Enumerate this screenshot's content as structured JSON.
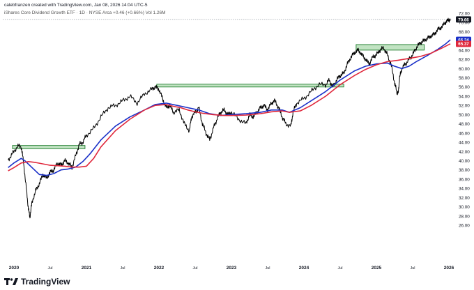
{
  "header": {
    "credit": "calebfranzen created with TradingView.com, Jan 08, 2026 14:04 UTC-5",
    "legend": "iShares Core Dividend Growth ETF · 1D · NYSE Arca  +0.46 (+0.66%)  Vol 1.26M"
  },
  "brand": {
    "name": "TradingView",
    "icon": "tradingview-logo-icon"
  },
  "chart_data": {
    "type": "line",
    "title": "iShares Core Dividend Growth ETF · 1D · NYSE Arca",
    "xlabel": "",
    "ylabel": "",
    "ylim": [
      26,
      72
    ],
    "xlim": [
      2019.92,
      2026.05
    ],
    "y_ticks": [
      "26.00",
      "28.00",
      "30.00",
      "32.00",
      "34.00",
      "36.00",
      "38.00",
      "40.00",
      "42.00",
      "44.00",
      "46.00",
      "48.00",
      "50.00",
      "52.00",
      "54.00",
      "56.00",
      "58.00",
      "60.00",
      "62.00",
      "64.00",
      "66.00",
      "68.00",
      "70.00",
      "72.00"
    ],
    "x_ticks": [
      {
        "label": "2020",
        "x": 2020.0
      },
      {
        "label": "Jul",
        "x": 2020.5
      },
      {
        "label": "2021",
        "x": 2021.0
      },
      {
        "label": "Jul",
        "x": 2021.5
      },
      {
        "label": "2022",
        "x": 2022.0
      },
      {
        "label": "Jul",
        "x": 2022.5
      },
      {
        "label": "2023",
        "x": 2023.0
      },
      {
        "label": "Jul",
        "x": 2023.5
      },
      {
        "label": "2024",
        "x": 2024.0
      },
      {
        "label": "Jul",
        "x": 2024.5
      },
      {
        "label": "2025",
        "x": 2025.0
      },
      {
        "label": "Jul",
        "x": 2025.5
      },
      {
        "label": "2026",
        "x": 2026.0
      }
    ],
    "price_labels": [
      {
        "value": 70.66,
        "text": "70.66",
        "color": "#131722"
      },
      {
        "value": 66.24,
        "text": "66.24",
        "color": "#1a30c8"
      },
      {
        "value": 65.37,
        "text": "65.37",
        "color": "#e0283c"
      }
    ],
    "last_price_line": 70.66,
    "series": [
      {
        "type": "price",
        "color": "#000000",
        "x": [
          2019.92,
          2019.98,
          2020.05,
          2020.1,
          2020.13,
          2020.17,
          2020.2,
          2020.22,
          2020.25,
          2020.3,
          2020.35,
          2020.4,
          2020.45,
          2020.5,
          2020.55,
          2020.6,
          2020.65,
          2020.7,
          2020.75,
          2020.8,
          2020.85,
          2020.9,
          2020.95,
          2021.0,
          2021.1,
          2021.2,
          2021.3,
          2021.4,
          2021.5,
          2021.6,
          2021.7,
          2021.8,
          2021.9,
          2021.95,
          2022.0,
          2022.05,
          2022.1,
          2022.15,
          2022.2,
          2022.28,
          2022.35,
          2022.42,
          2022.45,
          2022.5,
          2022.55,
          2022.6,
          2022.65,
          2022.7,
          2022.75,
          2022.8,
          2022.85,
          2022.9,
          2022.95,
          2023.0,
          2023.1,
          2023.2,
          2023.25,
          2023.3,
          2023.35,
          2023.4,
          2023.45,
          2023.5,
          2023.55,
          2023.6,
          2023.65,
          2023.7,
          2023.75,
          2023.82,
          2023.85,
          2023.9,
          2024.0,
          2024.1,
          2024.2,
          2024.3,
          2024.35,
          2024.4,
          2024.45,
          2024.5,
          2024.55,
          2024.6,
          2024.65,
          2024.7,
          2024.75,
          2024.8,
          2024.85,
          2024.9,
          2024.95,
          2025.0,
          2025.05,
          2025.1,
          2025.15,
          2025.2,
          2025.25,
          2025.28,
          2025.3,
          2025.32,
          2025.35,
          2025.4,
          2025.45,
          2025.5,
          2025.55,
          2025.6,
          2025.65,
          2025.7,
          2025.75,
          2025.8,
          2025.85,
          2025.9,
          2025.95,
          2025.99,
          2026.02
        ],
        "values": [
          40.2,
          41.5,
          43.2,
          43.0,
          40.0,
          34.0,
          29.5,
          27.8,
          31.0,
          33.5,
          35.0,
          37.0,
          36.2,
          37.5,
          38.0,
          39.5,
          39.0,
          40.0,
          39.5,
          38.5,
          41.0,
          43.5,
          44.0,
          45.5,
          47.0,
          49.5,
          51.5,
          52.0,
          53.0,
          54.0,
          52.5,
          54.5,
          55.5,
          56.0,
          55.5,
          53.5,
          51.5,
          52.0,
          50.5,
          51.0,
          48.0,
          46.5,
          49.5,
          50.5,
          51.5,
          48.0,
          46.0,
          44.5,
          47.0,
          49.0,
          50.5,
          51.0,
          50.0,
          50.5,
          49.0,
          48.0,
          50.0,
          49.5,
          50.5,
          51.5,
          52.0,
          51.0,
          52.5,
          53.0,
          51.5,
          49.5,
          48.0,
          47.5,
          50.5,
          52.5,
          53.5,
          55.0,
          56.5,
          56.5,
          57.5,
          56.0,
          57.5,
          58.5,
          59.0,
          61.0,
          62.5,
          63.5,
          64.0,
          63.0,
          62.0,
          61.0,
          62.5,
          63.0,
          64.0,
          64.5,
          63.0,
          61.0,
          57.0,
          55.0,
          54.5,
          58.0,
          60.0,
          61.0,
          62.0,
          63.0,
          64.5,
          65.5,
          66.0,
          66.5,
          67.0,
          67.5,
          68.5,
          69.0,
          70.0,
          70.5,
          70.66
        ]
      },
      {
        "type": "ma-blue",
        "color": "#1a30c8",
        "x": [
          2019.92,
          2020.0,
          2020.1,
          2020.15,
          2020.25,
          2020.35,
          2020.45,
          2020.55,
          2020.65,
          2020.75,
          2020.85,
          2020.95,
          2021.05,
          2021.2,
          2021.4,
          2021.6,
          2021.8,
          2021.95,
          2022.1,
          2022.25,
          2022.4,
          2022.55,
          2022.7,
          2022.85,
          2023.0,
          2023.2,
          2023.4,
          2023.55,
          2023.7,
          2023.8,
          2023.95,
          2024.1,
          2024.3,
          2024.5,
          2024.7,
          2024.85,
          2025.0,
          2025.15,
          2025.25,
          2025.35,
          2025.45,
          2025.55,
          2025.7,
          2025.85,
          2025.95,
          2026.02
        ],
        "values": [
          38.5,
          39.5,
          40.5,
          40.0,
          38.5,
          37.0,
          36.8,
          37.2,
          38.0,
          38.2,
          38.6,
          39.8,
          41.5,
          44.5,
          47.5,
          49.5,
          51.0,
          52.2,
          52.5,
          52.0,
          51.5,
          51.0,
          50.2,
          49.8,
          50.0,
          50.2,
          50.5,
          51.0,
          51.0,
          50.5,
          51.5,
          53.0,
          55.0,
          57.5,
          59.5,
          60.5,
          61.0,
          61.2,
          60.5,
          60.0,
          60.5,
          61.5,
          62.8,
          64.2,
          65.3,
          66.24
        ]
      },
      {
        "type": "ma-red",
        "color": "#e0283c",
        "x": [
          2019.92,
          2020.0,
          2020.1,
          2020.2,
          2020.3,
          2020.4,
          2020.5,
          2020.6,
          2020.7,
          2020.8,
          2020.9,
          2021.0,
          2021.1,
          2021.2,
          2021.4,
          2021.6,
          2021.8,
          2021.95,
          2022.1,
          2022.2,
          2022.3,
          2022.4,
          2022.5,
          2022.6,
          2022.75,
          2022.9,
          2023.0,
          2023.2,
          2023.4,
          2023.55,
          2023.7,
          2023.8,
          2023.95,
          2024.1,
          2024.3,
          2024.5,
          2024.7,
          2024.85,
          2025.0,
          2025.15,
          2025.3,
          2025.45,
          2025.6,
          2025.75,
          2025.9,
          2026.02
        ],
        "values": [
          37.8,
          38.5,
          39.5,
          39.8,
          39.6,
          39.3,
          39.0,
          38.9,
          38.8,
          38.6,
          38.6,
          38.8,
          40.5,
          43.0,
          46.5,
          49.0,
          51.0,
          52.0,
          52.2,
          51.8,
          51.5,
          51.0,
          50.6,
          50.3,
          50.0,
          49.8,
          49.8,
          49.9,
          50.2,
          50.6,
          50.8,
          50.5,
          50.8,
          52.0,
          54.0,
          56.5,
          58.5,
          59.8,
          60.8,
          61.5,
          61.8,
          62.2,
          62.6,
          63.3,
          64.4,
          65.37
        ]
      }
    ],
    "zones": [
      {
        "x0": 2019.98,
        "x1": 2020.98,
        "y0": 42.6,
        "y1": 43.3
      },
      {
        "x0": 2021.97,
        "x1": 2024.55,
        "y0": 56.0,
        "y1": 56.6
      },
      {
        "x0": 2024.72,
        "x1": 2025.66,
        "y0": 64.0,
        "y1": 65.2
      }
    ]
  }
}
